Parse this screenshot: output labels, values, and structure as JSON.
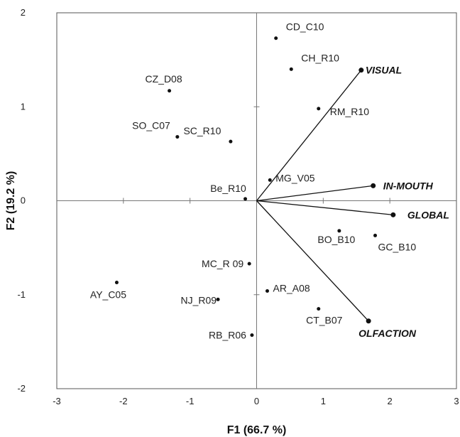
{
  "chart_data": {
    "type": "scatter",
    "xlabel": "F1 (66.7 %)",
    "ylabel": "F2 (19.2 %)",
    "xlim": [
      -3,
      3
    ],
    "ylim": [
      -2,
      2
    ],
    "xticks": [
      "-3",
      "-2",
      "-1",
      "0",
      "1",
      "2",
      "3"
    ],
    "yticks": [
      "-2",
      "-1",
      "0",
      "1",
      "2"
    ],
    "grid": false,
    "observations": [
      {
        "label": "CD_C10",
        "x": 0.29,
        "y": 1.73
      },
      {
        "label": "CH_R10",
        "x": 0.52,
        "y": 1.4
      },
      {
        "label": "CZ_D08",
        "x": -1.31,
        "y": 1.17
      },
      {
        "label": "RM_R10",
        "x": 0.93,
        "y": 0.98
      },
      {
        "label": "SO_C07",
        "x": -1.19,
        "y": 0.68
      },
      {
        "label": "SC_R10",
        "x": -0.39,
        "y": 0.63
      },
      {
        "label": "MG_V05",
        "x": 0.2,
        "y": 0.22
      },
      {
        "label": "Be_R10",
        "x": -0.17,
        "y": 0.02
      },
      {
        "label": "BO_B10",
        "x": 1.24,
        "y": -0.32
      },
      {
        "label": "GC_B10",
        "x": 1.78,
        "y": -0.37
      },
      {
        "label": "MC_R 09",
        "x": -0.11,
        "y": -0.67
      },
      {
        "label": "AY_C05",
        "x": -2.1,
        "y": -0.87
      },
      {
        "label": "AR_A08",
        "x": 0.16,
        "y": -0.96
      },
      {
        "label": "NJ_R09",
        "x": -0.58,
        "y": -1.05
      },
      {
        "label": "CT_B07",
        "x": 0.93,
        "y": -1.15
      },
      {
        "label": "RB_R06",
        "x": -0.07,
        "y": -1.43
      }
    ],
    "variables": [
      {
        "label": "VISUAL",
        "x": 1.57,
        "y": 1.39
      },
      {
        "label": "IN-MOUTH",
        "x": 1.75,
        "y": 0.16
      },
      {
        "label": "GLOBAL",
        "x": 2.05,
        "y": -0.15
      },
      {
        "label": "OLFACTION",
        "x": 1.68,
        "y": -1.28
      }
    ]
  }
}
